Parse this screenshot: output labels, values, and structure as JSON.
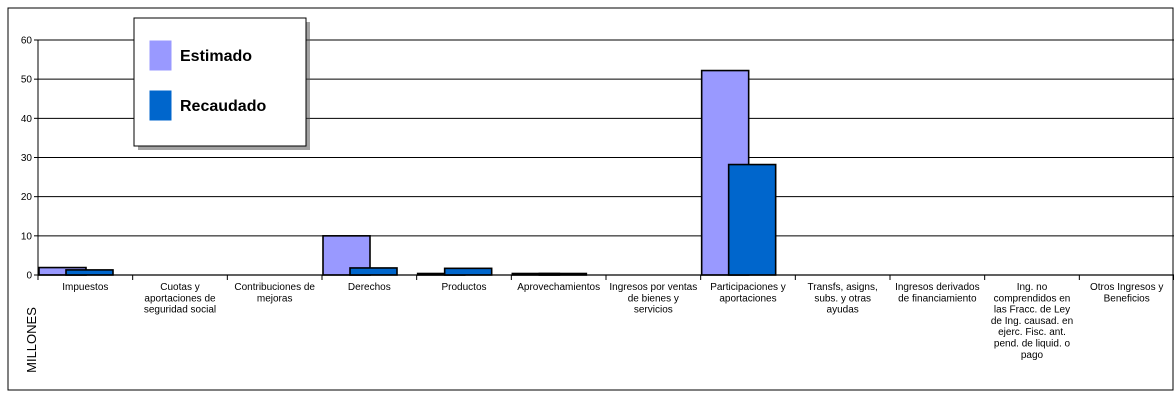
{
  "chart_data": {
    "type": "bar",
    "title": "",
    "xlabel": "",
    "ylabel": "MILLONES",
    "ylim": [
      0,
      60
    ],
    "yticks": [
      0,
      10,
      20,
      30,
      40,
      50,
      60
    ],
    "grid": true,
    "legend_position": "top-left",
    "categories": [
      [
        "Impuestos"
      ],
      [
        "Cuotas y",
        "aportaciones de",
        "seguridad social"
      ],
      [
        "Contribuciones de",
        "mejoras"
      ],
      [
        "Derechos"
      ],
      [
        "Productos"
      ],
      [
        "Aprovechamientos"
      ],
      [
        "Ingresos por ventas",
        "de bienes y",
        "servicios"
      ],
      [
        "Participaciones y",
        "aportaciones"
      ],
      [
        "Transfs, asigns,",
        "subs. y otras",
        "ayudas"
      ],
      [
        "Ingresos derivados",
        "de financiamiento"
      ],
      [
        "Ing. no",
        "comprendidos en",
        "las Fracc. de Ley",
        "de Ing. causad. en",
        "ejerc. Fisc. ant.",
        "pend. de liquid. o",
        "pago"
      ],
      [
        "Otros Ingresos y",
        "Beneficios"
      ]
    ],
    "series": [
      {
        "name": "Estimado",
        "color": "#9999ff",
        "values": [
          1.9,
          0,
          0,
          10.0,
          0.2,
          0.3,
          0,
          52.2,
          0,
          0,
          0,
          0
        ]
      },
      {
        "name": "Recaudado",
        "color": "#0066cc",
        "values": [
          1.3,
          0,
          0,
          1.8,
          1.7,
          0.2,
          0,
          28.2,
          0,
          0,
          0,
          0
        ]
      }
    ]
  }
}
